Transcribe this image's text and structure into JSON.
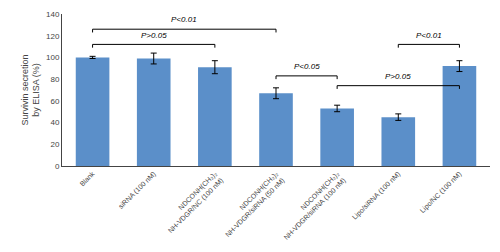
{
  "chart_data": {
    "type": "bar",
    "categories": [
      "Blank",
      "siRNA (100 nM)",
      "NDCONH(CH₂)₂\nNH-VDGR/NC (100 nM)",
      "NDCONH(CH₂)₂\nNH-VDGR/siRNA (50 nM)",
      "NDCONH(CH₂)₂\nNH-VDGR/siRNA (100 nM)",
      "Lipo/siRNA (100 nM)",
      "Lipo/NC (100 nM)"
    ],
    "values": [
      100,
      99,
      91,
      67,
      53,
      45,
      92
    ],
    "errors": [
      1,
      5,
      6,
      5,
      3,
      3,
      5
    ],
    "color": "#5b8fc9",
    "ylabel": "Survivin secretion\nby ELISA (%)",
    "ylim": [
      0,
      140
    ],
    "yticks": [
      0,
      20,
      40,
      60,
      80,
      100,
      120,
      140
    ],
    "grid": false,
    "annotations": [
      {
        "from": "Blank",
        "to": "NDCONH(CH₂)₂\nNH-VDGR/NC (100 nM)",
        "y": 112,
        "label": "P>0.05",
        "label_y": 114.5
      },
      {
        "from": "Blank",
        "to": "NDCONH(CH₂)₂\nNH-VDGR/siRNA (50 nM)",
        "y": 126,
        "label": "P<0.01",
        "label_y": 128.5
      },
      {
        "from": "NDCONH(CH₂)₂\nNH-VDGR/siRNA (50 nM)",
        "to": "NDCONH(CH₂)₂\nNH-VDGR/siRNA (100 nM)",
        "y": 83,
        "label": "P<0.05",
        "label_y": 85.5
      },
      {
        "from": "NDCONH(CH₂)₂\nNH-VDGR/siRNA (100 nM)",
        "to": "Lipo/NC (100 nM)",
        "y": 74,
        "label": "P>0.05",
        "label_y": 76.5
      },
      {
        "from": "Lipo/siRNA (100 nM)",
        "to": "Lipo/NC (100 nM)",
        "y": 112,
        "label": "P<0.01",
        "label_y": 114.5
      }
    ]
  }
}
